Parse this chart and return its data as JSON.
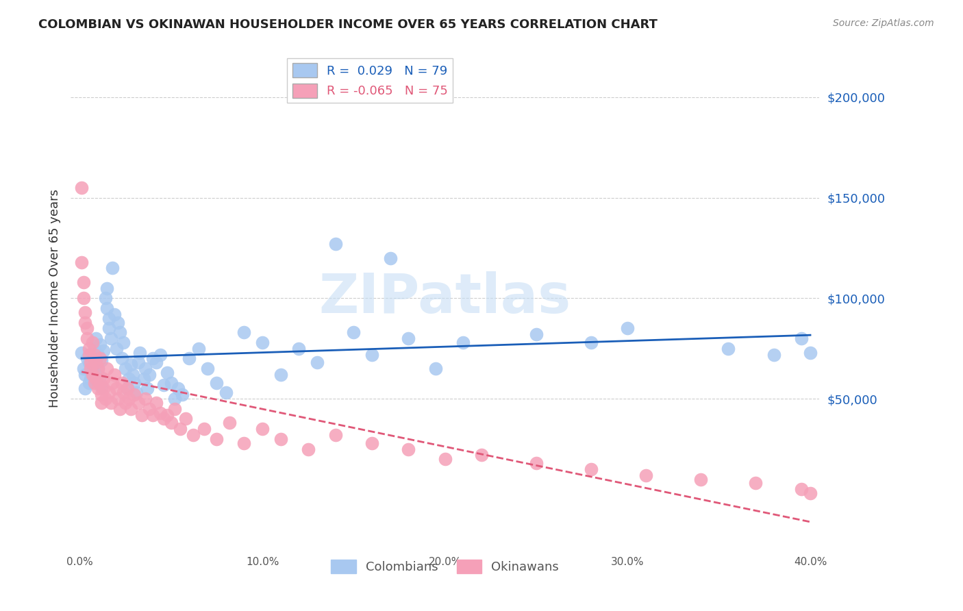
{
  "title": "COLOMBIAN VS OKINAWAN HOUSEHOLDER INCOME OVER 65 YEARS CORRELATION CHART",
  "source": "Source: ZipAtlas.com",
  "ylabel": "Householder Income Over 65 years",
  "xlim": [
    0.0,
    0.4
  ],
  "ylim": [
    -25000,
    225000
  ],
  "watermark": "ZIPatlas",
  "colombian_color": "#a8c8f0",
  "colombian_line_color": "#1a5eb8",
  "okinawan_color": "#f5a0b8",
  "okinawan_line_color": "#e05878",
  "colombians_x": [
    0.001,
    0.002,
    0.003,
    0.003,
    0.004,
    0.005,
    0.005,
    0.006,
    0.006,
    0.007,
    0.008,
    0.008,
    0.009,
    0.01,
    0.01,
    0.011,
    0.011,
    0.012,
    0.012,
    0.013,
    0.014,
    0.015,
    0.015,
    0.016,
    0.016,
    0.017,
    0.018,
    0.019,
    0.02,
    0.021,
    0.022,
    0.023,
    0.024,
    0.025,
    0.026,
    0.027,
    0.028,
    0.029,
    0.03,
    0.031,
    0.032,
    0.033,
    0.035,
    0.036,
    0.037,
    0.038,
    0.04,
    0.042,
    0.044,
    0.046,
    0.048,
    0.05,
    0.052,
    0.054,
    0.056,
    0.06,
    0.065,
    0.07,
    0.075,
    0.08,
    0.09,
    0.1,
    0.11,
    0.12,
    0.13,
    0.14,
    0.15,
    0.16,
    0.17,
    0.18,
    0.195,
    0.21,
    0.25,
    0.28,
    0.3,
    0.355,
    0.38,
    0.395,
    0.4
  ],
  "colombians_y": [
    73000,
    65000,
    62000,
    55000,
    70000,
    68000,
    58000,
    72000,
    60000,
    67000,
    63000,
    75000,
    80000,
    72000,
    65000,
    77000,
    61000,
    69000,
    56000,
    74000,
    100000,
    105000,
    95000,
    85000,
    90000,
    80000,
    115000,
    92000,
    75000,
    88000,
    83000,
    70000,
    78000,
    65000,
    55000,
    60000,
    67000,
    62000,
    58000,
    53000,
    68000,
    73000,
    60000,
    65000,
    55000,
    62000,
    70000,
    68000,
    72000,
    57000,
    63000,
    58000,
    50000,
    55000,
    52000,
    70000,
    75000,
    65000,
    58000,
    53000,
    83000,
    78000,
    62000,
    75000,
    68000,
    127000,
    83000,
    72000,
    120000,
    80000,
    65000,
    78000,
    82000,
    78000,
    85000,
    75000,
    72000,
    80000,
    73000
  ],
  "okinawans_x": [
    0.001,
    0.001,
    0.002,
    0.002,
    0.003,
    0.003,
    0.004,
    0.004,
    0.005,
    0.005,
    0.006,
    0.006,
    0.007,
    0.007,
    0.008,
    0.008,
    0.009,
    0.009,
    0.01,
    0.01,
    0.011,
    0.011,
    0.012,
    0.012,
    0.013,
    0.013,
    0.014,
    0.015,
    0.016,
    0.017,
    0.018,
    0.019,
    0.02,
    0.021,
    0.022,
    0.023,
    0.024,
    0.025,
    0.026,
    0.027,
    0.028,
    0.03,
    0.032,
    0.034,
    0.036,
    0.038,
    0.04,
    0.042,
    0.044,
    0.046,
    0.048,
    0.05,
    0.052,
    0.055,
    0.058,
    0.062,
    0.068,
    0.075,
    0.082,
    0.09,
    0.1,
    0.11,
    0.125,
    0.14,
    0.16,
    0.18,
    0.2,
    0.22,
    0.25,
    0.28,
    0.31,
    0.34,
    0.37,
    0.395,
    0.4
  ],
  "okinawans_y": [
    155000,
    118000,
    108000,
    100000,
    93000,
    88000,
    85000,
    80000,
    75000,
    72000,
    68000,
    65000,
    62000,
    78000,
    58000,
    72000,
    68000,
    60000,
    65000,
    55000,
    70000,
    58000,
    52000,
    48000,
    60000,
    55000,
    50000,
    65000,
    53000,
    48000,
    58000,
    62000,
    55000,
    50000,
    45000,
    58000,
    53000,
    48000,
    55000,
    50000,
    45000,
    52000,
    48000,
    42000,
    50000,
    45000,
    42000,
    48000,
    43000,
    40000,
    42000,
    38000,
    45000,
    35000,
    40000,
    32000,
    35000,
    30000,
    38000,
    28000,
    35000,
    30000,
    25000,
    32000,
    28000,
    25000,
    20000,
    22000,
    18000,
    15000,
    12000,
    10000,
    8000,
    5000,
    3000
  ]
}
